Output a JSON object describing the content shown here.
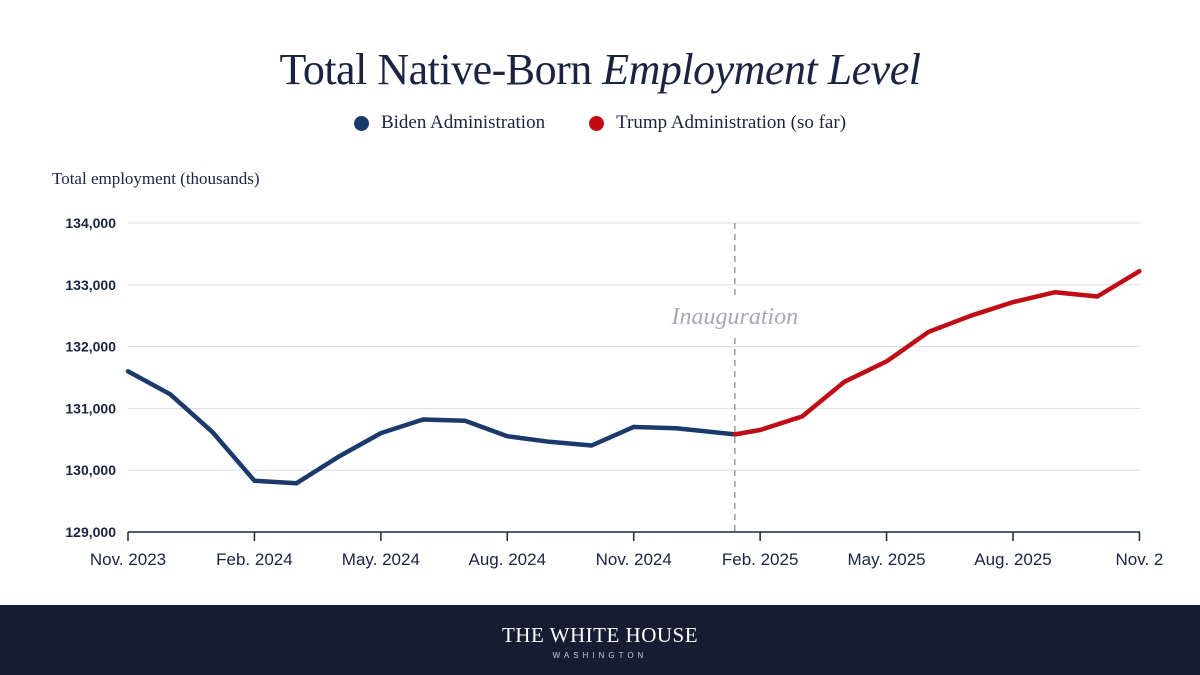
{
  "chart_data": {
    "type": "line",
    "title": "Total Native-Born",
    "title_emphasis": "Employment Level",
    "ylabel": "Total employment (thousands)",
    "xlabel": "",
    "ylim": [
      129000,
      134000
    ],
    "y_ticks": [
      "134,000",
      "133,000",
      "132,000",
      "131,000",
      "130,000",
      "129,000"
    ],
    "y_tick_values": [
      134000,
      133000,
      132000,
      131000,
      130000,
      129000
    ],
    "x_tick_labels": [
      "Nov. 2023",
      "Feb. 2024",
      "May. 2024",
      "Aug. 2024",
      "Nov. 2024",
      "Feb. 2025",
      "May. 2025",
      "Aug. 2025",
      "Nov. 2"
    ],
    "x_tick_month_index": [
      0,
      3,
      6,
      9,
      12,
      15,
      18,
      21,
      24
    ],
    "grid": "horizontal",
    "legend_position": "top-center",
    "annotation": {
      "text": "Inauguration",
      "month_index": 14.4
    },
    "series": [
      {
        "name": "Biden Administration",
        "color": "#1b3a6b",
        "x_month_index": [
          0,
          1,
          2,
          3,
          4,
          5,
          6,
          7,
          8,
          9,
          10,
          11,
          12,
          13,
          14.4
        ],
        "values": [
          131600,
          131230,
          130620,
          129830,
          129790,
          130220,
          130600,
          130820,
          130800,
          130550,
          130460,
          130400,
          130700,
          130680,
          130580
        ]
      },
      {
        "name": "Trump Administration (so far)",
        "color": "#c00d15",
        "x_month_index": [
          14.4,
          15,
          16,
          17,
          18,
          19,
          20,
          21,
          22,
          23,
          24
        ],
        "values": [
          130580,
          130650,
          130870,
          131430,
          131760,
          132240,
          132500,
          132720,
          132880,
          132810,
          133220
        ]
      }
    ]
  },
  "footer": {
    "name": "THE WHITE HOUSE",
    "subtitle": "WASHINGTON"
  }
}
